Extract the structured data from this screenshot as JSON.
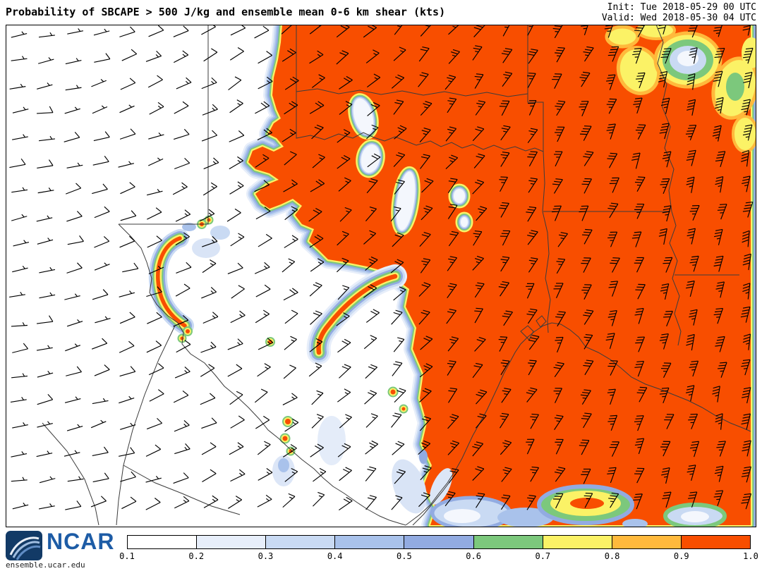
{
  "header": {
    "title": "Probability of SBCAPE > 500 J/kg and ensemble mean 0-6 km shear (kts)",
    "init_label": "Init: Tue 2018-05-29 00 UTC",
    "valid_label": "Valid: Wed 2018-05-30 04 UTC"
  },
  "footer": {
    "logo_text": "NCAR",
    "site_url": "ensemble.ucar.edu"
  },
  "legend": {
    "tick_labels": [
      "0.1",
      "0.2",
      "0.3",
      "0.4",
      "0.5",
      "0.6",
      "0.7",
      "0.8",
      "0.9",
      "1.0"
    ],
    "segment_colors": [
      "#FFFFFF",
      "#E7EEFA",
      "#C9DAF3",
      "#A9C2EB",
      "#92ABE1",
      "#7CC87C",
      "#FBF266",
      "#FFB93C",
      "#F84E00"
    ]
  },
  "chart_data": {
    "type": "heatmap",
    "title": "Probability of SBCAPE > 500 J/kg and ensemble mean 0-6 km shear (kts)",
    "variable": "Probability of SBCAPE > 500 J/kg",
    "overlay": "ensemble mean 0-6 km shear (kts), wind barbs",
    "init": "Tue 2018-05-29 00 UTC",
    "valid": "Wed 2018-05-30 04 UTC",
    "scale": {
      "values": [
        0.1,
        0.2,
        0.3,
        0.4,
        0.5,
        0.6,
        0.7,
        0.8,
        0.9,
        1.0
      ],
      "colors": [
        "#FFFFFF",
        "#E7EEFA",
        "#C9DAF3",
        "#A9C2EB",
        "#92ABE1",
        "#7CC87C",
        "#FBF266",
        "#FFB93C",
        "#F84E00"
      ]
    },
    "regions": [
      {
        "area": "eastern and northern two-thirds of domain (east Texas, Oklahoma, Arkansas, Louisiana)",
        "probability": "0.9-1.0"
      },
      {
        "area": "west Texas, New Mexico and northern Mexico",
        "probability": "< 0.1"
      },
      {
        "area": "Big Bend / Rio Grande arc",
        "probability": "narrow 0.7-1.0 band"
      },
      {
        "area": "central Texas diagonal band",
        "probability": "narrow 0.7-1.0 band"
      },
      {
        "area": "Gulf coast fringe near coastline",
        "probability": "mottled 0.1-0.9"
      },
      {
        "area": "far northeast corner of domain",
        "probability": "mottled 0.1-0.8"
      }
    ],
    "wind_barbs": {
      "units": "kts",
      "west_speeds_kts": "5-10",
      "central_speeds_kts": "15-25",
      "east_speeds_kts": "30-45",
      "pattern": "shear magnitude increases from west to east; barb orientation rotates from westerly in the west to south-southwesterly in the east"
    }
  }
}
